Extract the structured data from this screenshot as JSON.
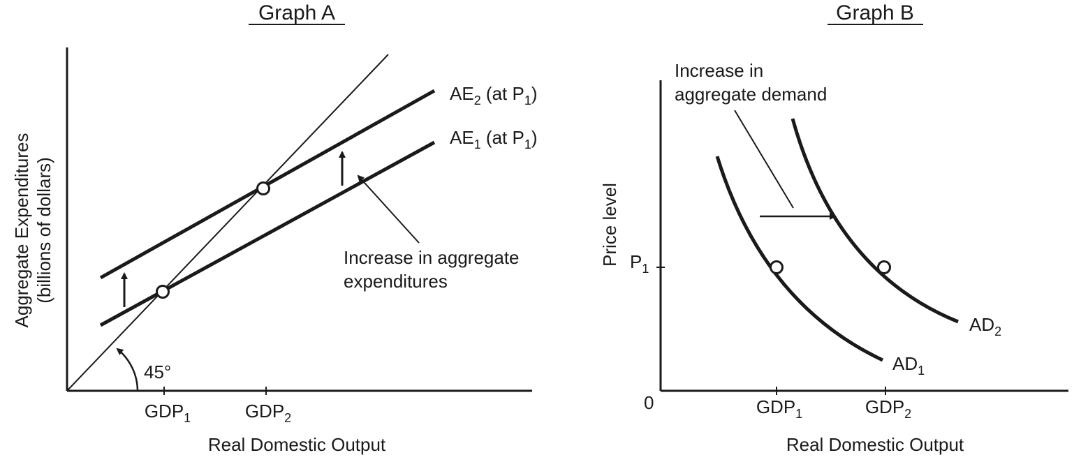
{
  "graph_a": {
    "title": "Graph A",
    "ylabel_line1": "Aggregate Expenditures",
    "ylabel_line2": "(billions of dollars)",
    "xlabel": "Real Domestic Output",
    "angle_label": "45°",
    "tick1": {
      "base": "GDP",
      "sub": "1"
    },
    "tick2": {
      "base": "GDP",
      "sub": "2"
    },
    "ae2": {
      "base": "AE",
      "sub": "2",
      "mid": " (at P",
      "sub2": "1",
      "end": ")"
    },
    "ae1": {
      "base": "AE",
      "sub": "1",
      "mid": " (at P",
      "sub2": "1",
      "end": ")"
    },
    "annotation_line1": "Increase in aggregate",
    "annotation_line2": "expenditures"
  },
  "graph_b": {
    "title": "Graph B",
    "ylabel": "Price level",
    "xlabel": "Real Domestic Output",
    "origin": "0",
    "p1": {
      "base": "P",
      "sub": "1"
    },
    "tick1": {
      "base": "GDP",
      "sub": "1"
    },
    "tick2": {
      "base": "GDP",
      "sub": "2"
    },
    "ad1": {
      "base": "AD",
      "sub": "1"
    },
    "ad2": {
      "base": "AD",
      "sub": "2"
    },
    "annotation_line1": "Increase in",
    "annotation_line2": "aggregate demand"
  }
}
